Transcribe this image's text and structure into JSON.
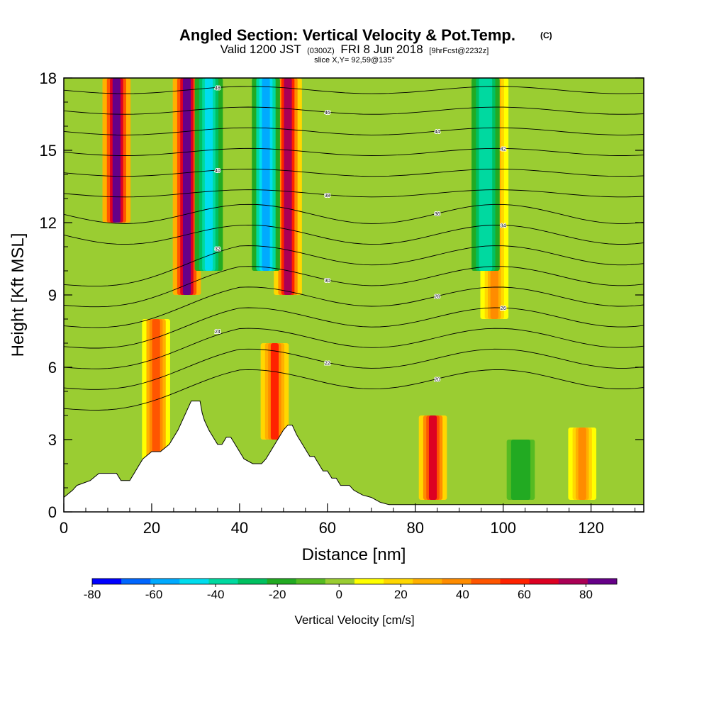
{
  "chart_data": {
    "type": "heatmap",
    "title": "Angled Section: Vertical Velocity & Pot.Temp.",
    "title_mark": "(C)",
    "subtitle_parts": [
      "Valid 1200 JST",
      "(0300Z)",
      "FRI 8 Jun 2018",
      "[9hrFcst@2232z]"
    ],
    "slice_label": "slice X,Y= 92,59@135°",
    "xlabel": "Distance [nm]",
    "ylabel": "Height [Kft MSL]",
    "xlim": [
      0,
      132
    ],
    "ylim": [
      0,
      18
    ],
    "x_ticks": [
      "0",
      "20",
      "40",
      "60",
      "80",
      "100",
      "120"
    ],
    "x_tick_values": [
      0,
      20,
      40,
      60,
      80,
      100,
      120
    ],
    "y_ticks": [
      "0",
      "3",
      "6",
      "9",
      "12",
      "15",
      "18"
    ],
    "y_tick_values": [
      0,
      3,
      6,
      9,
      12,
      15,
      18
    ],
    "colorbar": {
      "title": "Vertical Velocity [cm/s]",
      "min": -80,
      "max": 90,
      "step": 10,
      "labels": [
        "-80",
        "-60",
        "-40",
        "-20",
        "0",
        "20",
        "40",
        "60",
        "80"
      ],
      "label_values": [
        -80,
        -60,
        -40,
        -20,
        0,
        20,
        40,
        60,
        80
      ],
      "colors": [
        "#0000ff",
        "#0066ff",
        "#00aaff",
        "#00ddee",
        "#00d9a0",
        "#00c060",
        "#22aa22",
        "#55bb22",
        "#9acd32",
        "#ffff00",
        "#ffd700",
        "#ffb000",
        "#ff8c00",
        "#ff5500",
        "#ff2200",
        "#dd0022",
        "#aa0055",
        "#660088"
      ]
    },
    "updraft_columns": [
      {
        "x": 12,
        "w": 90,
        "top": 18,
        "bottom": 12
      },
      {
        "x": 21,
        "w": 55,
        "top": 8,
        "bottom": 2
      },
      {
        "x": 28,
        "w": 90,
        "top": 18,
        "bottom": 9
      },
      {
        "x": 48,
        "w": 60,
        "top": 7,
        "bottom": 3
      },
      {
        "x": 51,
        "w": 80,
        "top": 18,
        "bottom": 9
      },
      {
        "x": 84,
        "w": 70,
        "top": 4,
        "bottom": 0.5
      },
      {
        "x": 98,
        "w": 40,
        "top": 18,
        "bottom": 8
      },
      {
        "x": 118,
        "w": 45,
        "top": 3.5,
        "bottom": 0.5
      }
    ],
    "downdraft_columns": [
      {
        "x": 33,
        "w": -45,
        "top": 18,
        "bottom": 10
      },
      {
        "x": 46,
        "w": -55,
        "top": 18,
        "bottom": 10
      },
      {
        "x": 96,
        "w": -40,
        "top": 18,
        "bottom": 10
      },
      {
        "x": 104,
        "w": -20,
        "top": 3,
        "bottom": 0.5
      }
    ],
    "theta_labels": [
      "48",
      "46",
      "44",
      "42",
      "40",
      "38",
      "36",
      "34",
      "32",
      "30",
      "28",
      "26",
      "24",
      "22",
      "20"
    ],
    "terrain_kft": [
      [
        0,
        0.6
      ],
      [
        2,
        0.9
      ],
      [
        3,
        1.1
      ],
      [
        6,
        1.3
      ],
      [
        8,
        1.6
      ],
      [
        12,
        1.6
      ],
      [
        13,
        1.3
      ],
      [
        15,
        1.3
      ],
      [
        16,
        1.6
      ],
      [
        17,
        1.9
      ],
      [
        18,
        2.2
      ],
      [
        20,
        2.5
      ],
      [
        22,
        2.5
      ],
      [
        24,
        2.8
      ],
      [
        25,
        3.1
      ],
      [
        26,
        3.4
      ],
      [
        27,
        3.8
      ],
      [
        28,
        4.2
      ],
      [
        29,
        4.6
      ],
      [
        31,
        4.6
      ],
      [
        31.5,
        4.1
      ],
      [
        32,
        3.8
      ],
      [
        33,
        3.4
      ],
      [
        34,
        3.1
      ],
      [
        35,
        2.8
      ],
      [
        36,
        2.8
      ],
      [
        37,
        3.1
      ],
      [
        38,
        3.1
      ],
      [
        39,
        2.8
      ],
      [
        40,
        2.5
      ],
      [
        41,
        2.2
      ],
      [
        43,
        2.0
      ],
      [
        45,
        2.0
      ],
      [
        46,
        2.2
      ],
      [
        47,
        2.5
      ],
      [
        48,
        2.8
      ],
      [
        49,
        3.1
      ],
      [
        50,
        3.4
      ],
      [
        51,
        3.6
      ],
      [
        52,
        3.6
      ],
      [
        53,
        3.2
      ],
      [
        54,
        2.9
      ],
      [
        55,
        2.6
      ],
      [
        56,
        2.3
      ],
      [
        57,
        2.3
      ],
      [
        58,
        2.0
      ],
      [
        59,
        1.7
      ],
      [
        60,
        1.7
      ],
      [
        61,
        1.4
      ],
      [
        62,
        1.4
      ],
      [
        63,
        1.1
      ],
      [
        65,
        1.1
      ],
      [
        66,
        0.9
      ],
      [
        68,
        0.7
      ],
      [
        70,
        0.6
      ],
      [
        72,
        0.4
      ],
      [
        74,
        0.3
      ],
      [
        132,
        0.3
      ]
    ]
  }
}
